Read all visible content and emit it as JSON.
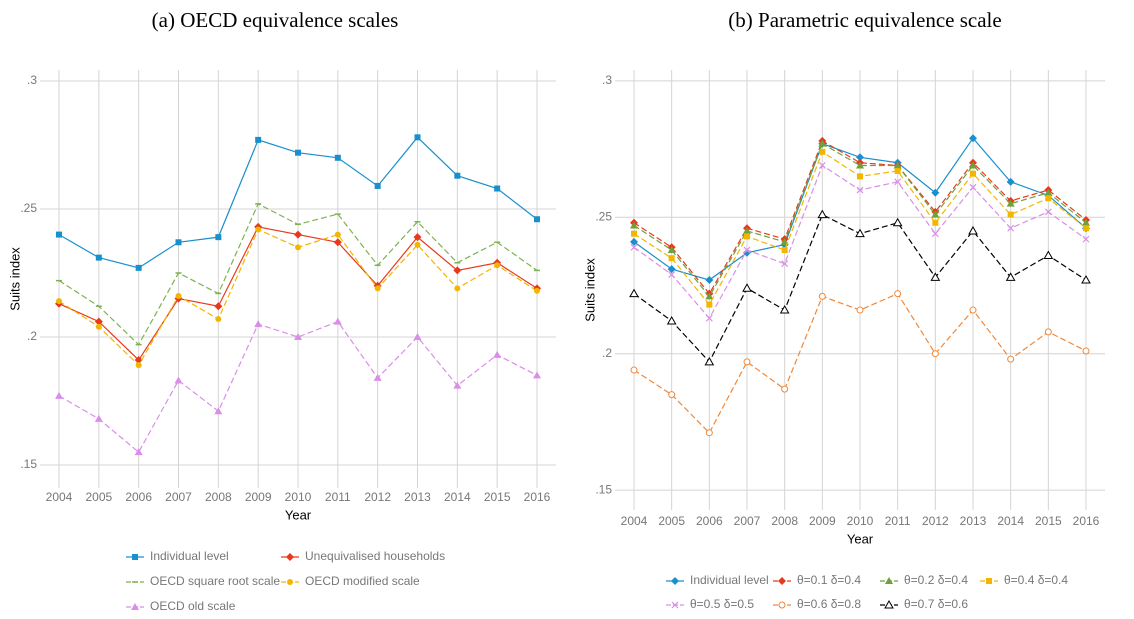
{
  "chart_data": [
    {
      "type": "line",
      "title": "(a) OECD equivalence scales",
      "y_label": "Suits index",
      "x_label": "Year",
      "categories": [
        "2004",
        "2005",
        "2006",
        "2007",
        "2008",
        "2009",
        "2010",
        "2011",
        "2012",
        "2013",
        "2014",
        "2015",
        "2016"
      ],
      "ylim": [
        0.141,
        0.3043
      ],
      "yticks": [
        {
          "value": 0.15,
          "label": ".15"
        },
        {
          "value": 0.2,
          "label": ".2"
        },
        {
          "value": 0.25,
          "label": ".25"
        },
        {
          "value": 0.3,
          "label": ".3"
        }
      ],
      "grid": true,
      "series": [
        {
          "name": "Individual level",
          "color": "#1a8fce",
          "marker": "square",
          "dashed": false,
          "values": [
            0.24,
            0.231,
            0.227,
            0.237,
            0.239,
            0.277,
            0.272,
            0.27,
            0.259,
            0.278,
            0.263,
            0.258,
            0.246
          ]
        },
        {
          "name": "Unequivalised households",
          "color": "#e8391d",
          "marker": "diamond",
          "dashed": false,
          "values": [
            0.213,
            0.206,
            0.191,
            0.215,
            0.212,
            0.243,
            0.24,
            0.237,
            0.22,
            0.239,
            0.226,
            0.229,
            0.219
          ]
        },
        {
          "name": "OECD square root scale",
          "color": "#7fb24f",
          "marker": "tick",
          "dashed": true,
          "values": [
            0.222,
            0.212,
            0.197,
            0.225,
            0.217,
            0.252,
            0.244,
            0.248,
            0.228,
            0.245,
            0.229,
            0.237,
            0.226
          ]
        },
        {
          "name": "OECD modified scale",
          "color": "#f2b600",
          "marker": "circle",
          "dashed": true,
          "values": [
            0.214,
            0.204,
            0.189,
            0.216,
            0.207,
            0.242,
            0.235,
            0.24,
            0.219,
            0.236,
            0.219,
            0.228,
            0.218
          ]
        },
        {
          "name": "OECD old scale",
          "color": "#da8ee8",
          "marker": "triangle",
          "dashed": true,
          "values": [
            0.177,
            0.168,
            0.155,
            0.183,
            0.171,
            0.205,
            0.2,
            0.206,
            0.184,
            0.2,
            0.181,
            0.193,
            0.185
          ]
        }
      ]
    },
    {
      "type": "line",
      "title": "(b) Parametric equivalence scale",
      "y_label": "Suits index",
      "x_label": "Year",
      "categories": [
        "2004",
        "2005",
        "2006",
        "2007",
        "2008",
        "2009",
        "2010",
        "2011",
        "2012",
        "2013",
        "2014",
        "2015",
        "2016"
      ],
      "ylim": [
        0.1427,
        0.304
      ],
      "yticks": [
        {
          "value": 0.15,
          "label": ".15"
        },
        {
          "value": 0.2,
          "label": ".2"
        },
        {
          "value": 0.25,
          "label": ".25"
        },
        {
          "value": 0.3,
          "label": ".3"
        }
      ],
      "grid": true,
      "series": [
        {
          "name": "Individual level",
          "color": "#1a8fce",
          "marker": "diamond",
          "dashed": false,
          "values": [
            0.241,
            0.231,
            0.227,
            0.237,
            0.24,
            0.277,
            0.272,
            0.27,
            0.259,
            0.279,
            0.263,
            0.258,
            0.246
          ]
        },
        {
          "name": "θ=0.1 δ=0.4",
          "color": "#e8391d",
          "marker": "diamond",
          "dashed": true,
          "values": [
            0.248,
            0.239,
            0.222,
            0.246,
            0.242,
            0.278,
            0.27,
            0.269,
            0.252,
            0.27,
            0.256,
            0.26,
            0.249
          ]
        },
        {
          "name": "θ=0.2 δ=0.4",
          "color": "#6ea13a",
          "marker": "triangle",
          "dashed": true,
          "values": [
            0.247,
            0.238,
            0.221,
            0.245,
            0.241,
            0.277,
            0.269,
            0.269,
            0.251,
            0.269,
            0.255,
            0.259,
            0.248
          ]
        },
        {
          "name": "θ=0.4 δ=0.4",
          "color": "#f2b600",
          "marker": "square",
          "dashed": true,
          "values": [
            0.244,
            0.235,
            0.218,
            0.243,
            0.238,
            0.274,
            0.265,
            0.267,
            0.248,
            0.266,
            0.251,
            0.257,
            0.246
          ]
        },
        {
          "name": "θ=0.5 δ=0.5",
          "color": "#da8ee8",
          "marker": "x",
          "dashed": true,
          "values": [
            0.239,
            0.229,
            0.213,
            0.238,
            0.233,
            0.269,
            0.26,
            0.263,
            0.244,
            0.261,
            0.246,
            0.252,
            0.242
          ]
        },
        {
          "name": "θ=0.6 δ=0.8",
          "color": "#f0883a",
          "marker": "open-circle",
          "dashed": true,
          "values": [
            0.194,
            0.185,
            0.171,
            0.197,
            0.187,
            0.221,
            0.216,
            0.222,
            0.2,
            0.216,
            0.198,
            0.208,
            0.201
          ]
        },
        {
          "name": "θ=0.7 δ=0.6",
          "color": "#000000",
          "marker": "open-triangle",
          "dashed": true,
          "values": [
            0.222,
            0.212,
            0.197,
            0.224,
            0.216,
            0.251,
            0.244,
            0.248,
            0.228,
            0.245,
            0.228,
            0.236,
            0.227
          ]
        }
      ]
    }
  ]
}
